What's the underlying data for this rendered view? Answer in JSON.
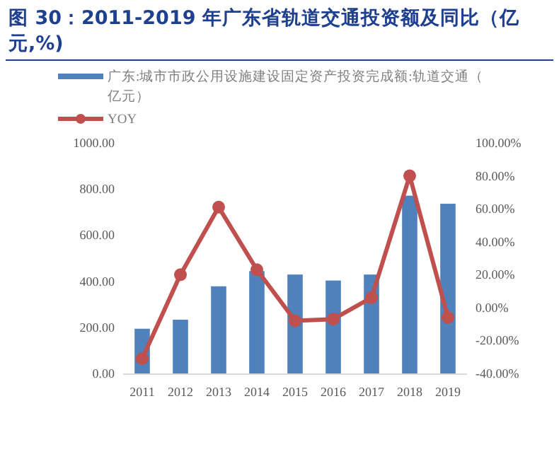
{
  "chart_data": {
    "type": "bar",
    "title": "图 30：2011-2019 年广东省轨道交通投资额及同比（亿元,%)",
    "categories": [
      "2011",
      "2012",
      "2013",
      "2014",
      "2015",
      "2016",
      "2017",
      "2018",
      "2019"
    ],
    "series": [
      {
        "name": "广东:城市市政公用设施建设固定资产投资完成额:轨道交通（亿元）",
        "color": "#4f81bd",
        "values": [
          194,
          233,
          378,
          444,
          429,
          403,
          429,
          771,
          736
        ]
      },
      {
        "name": "YOY",
        "type": "line",
        "axis": "y2",
        "color": "#c0504d",
        "values": [
          -31,
          20,
          61,
          23,
          -8,
          -7,
          6,
          80,
          -6
        ]
      }
    ],
    "ylim": [
      0,
      1000
    ],
    "yticks": [
      {
        "value": 0,
        "label": "0.00"
      },
      {
        "value": 200,
        "label": "200.00"
      },
      {
        "value": 400,
        "label": "400.00"
      },
      {
        "value": 600,
        "label": "600.00"
      },
      {
        "value": 800,
        "label": "800.00"
      },
      {
        "value": 1000,
        "label": "1000.00"
      }
    ],
    "y2lim": [
      -40,
      100
    ],
    "y2ticks": [
      {
        "value": -40,
        "label": "-40.00%"
      },
      {
        "value": -20,
        "label": "-20.00%"
      },
      {
        "value": 0,
        "label": "0.00%"
      },
      {
        "value": 20,
        "label": "20.00%"
      },
      {
        "value": 40,
        "label": "40.00%"
      },
      {
        "value": 60,
        "label": "60.00%"
      },
      {
        "value": 80,
        "label": "80.00%"
      },
      {
        "value": 100,
        "label": "100.00%"
      }
    ],
    "legend": "top",
    "marker": "circle"
  }
}
